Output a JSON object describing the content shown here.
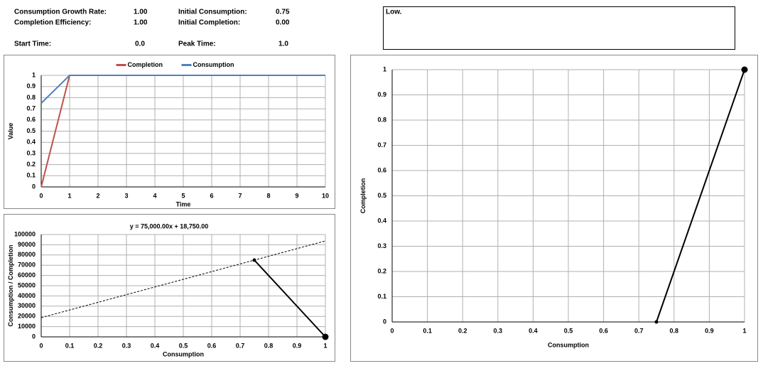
{
  "params": [
    {
      "label": "Consumption Growth Rate:",
      "value": "1.00"
    },
    {
      "label": "Completion Efficiency:",
      "value": "1.00"
    },
    {
      "label": "Initial Consumption:",
      "value": "0.75"
    },
    {
      "label": "Initial Completion:",
      "value": "0.00"
    },
    {
      "label": "Start Time:",
      "value": "0.0"
    },
    {
      "label": "Peak Time:",
      "value": "1.0"
    }
  ],
  "note": "Low.",
  "chart_data": [
    {
      "type": "line",
      "x_label": "Time",
      "y_label": "Value",
      "legend": "top",
      "grid": true,
      "x": [
        0,
        1,
        2,
        3,
        4,
        5,
        6,
        7,
        8,
        9,
        10
      ],
      "series": [
        {
          "name": "Completion",
          "color": "#c0504d",
          "values": [
            0,
            1,
            1,
            1,
            1,
            1,
            1,
            1,
            1,
            1,
            1
          ]
        },
        {
          "name": "Consumption",
          "color": "#4f81bd",
          "values": [
            0.75,
            1,
            1,
            1,
            1,
            1,
            1,
            1,
            1,
            1,
            1
          ]
        }
      ],
      "xlim": [
        0,
        10
      ],
      "xticks": [
        0,
        1,
        2,
        3,
        4,
        5,
        6,
        7,
        8,
        9,
        10
      ],
      "ylim": [
        0,
        1
      ],
      "yticks": [
        0,
        0.1,
        0.2,
        0.3,
        0.4,
        0.5,
        0.6,
        0.7,
        0.8,
        0.9,
        1
      ]
    },
    {
      "type": "line",
      "title": "y = 75,000.00x + 18,750.00",
      "x_label": "Consumption",
      "y_label": "Consumption / Completion",
      "grid": true,
      "series": [
        {
          "color": "#000000",
          "style": "dashed",
          "x": [
            0,
            1
          ],
          "values": [
            18750,
            93750
          ]
        },
        {
          "color": "#000000",
          "markers": true,
          "x": [
            0.75,
            1
          ],
          "values": [
            75000,
            0
          ]
        }
      ],
      "xlim": [
        0,
        1
      ],
      "xticks": [
        0,
        0.1,
        0.2,
        0.3,
        0.4,
        0.5,
        0.6,
        0.7,
        0.8,
        0.9,
        1
      ],
      "ylim": [
        0,
        100000
      ],
      "yticks": [
        0,
        10000,
        20000,
        30000,
        40000,
        50000,
        60000,
        70000,
        80000,
        90000,
        100000
      ]
    },
    {
      "type": "line",
      "x_label": "Consumption",
      "y_label": "Completion",
      "grid": true,
      "series": [
        {
          "color": "#000000",
          "markers": true,
          "x": [
            0.75,
            1
          ],
          "values": [
            0,
            1
          ]
        }
      ],
      "xlim": [
        0,
        1
      ],
      "xticks": [
        0,
        0.1,
        0.2,
        0.3,
        0.4,
        0.5,
        0.6,
        0.7,
        0.8,
        0.9,
        1
      ],
      "ylim": [
        0,
        1
      ],
      "yticks": [
        0,
        0.1,
        0.2,
        0.3,
        0.4,
        0.5,
        0.6,
        0.7,
        0.8,
        0.9,
        1
      ]
    }
  ]
}
